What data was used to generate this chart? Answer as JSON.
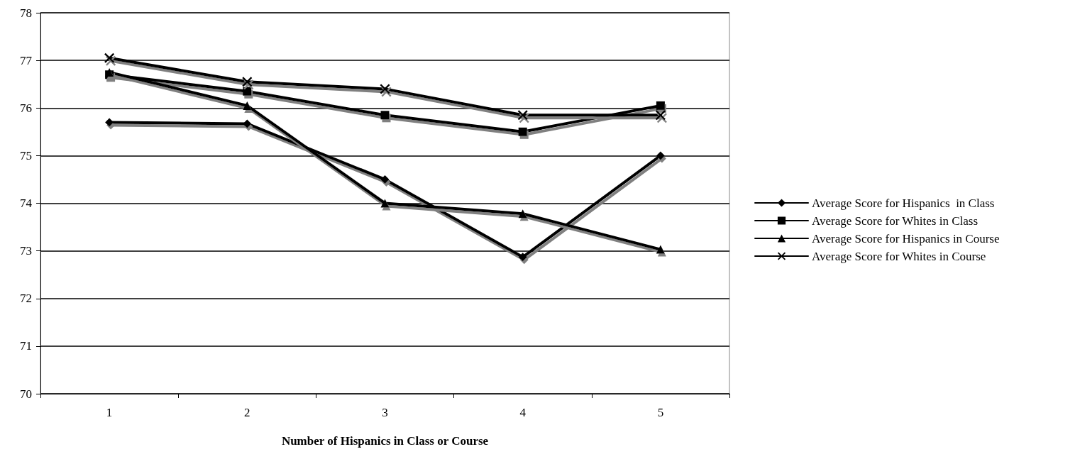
{
  "chart_data": {
    "type": "line",
    "xlabel": "Number of Hispanics in Class or Course",
    "categories": [
      "1",
      "2",
      "3",
      "4",
      "5"
    ],
    "series": [
      {
        "name": "Average Score for Hispanics  in Class",
        "color": "#000000",
        "marker": "diamond",
        "values": [
          75.7,
          75.67,
          74.5,
          72.87,
          75.0
        ]
      },
      {
        "name": "Average Score for Whites in Class",
        "color": "#000000",
        "marker": "square",
        "values": [
          76.7,
          76.35,
          75.85,
          75.5,
          76.05
        ]
      },
      {
        "name": "Average Score for Hispanics in Course",
        "color": "#000000",
        "marker": "triangle",
        "values": [
          76.75,
          76.05,
          74.0,
          73.78,
          73.03
        ]
      },
      {
        "name": "Average Score for Whites in Course",
        "color": "#000000",
        "marker": "cross",
        "values": [
          77.05,
          76.55,
          76.4,
          75.85,
          75.85
        ]
      }
    ],
    "ylim": [
      70,
      78
    ],
    "yticks": [
      70,
      71,
      72,
      73,
      74,
      75,
      76,
      77,
      78
    ],
    "grid": "y",
    "legend": "right",
    "line_style": "solid"
  }
}
